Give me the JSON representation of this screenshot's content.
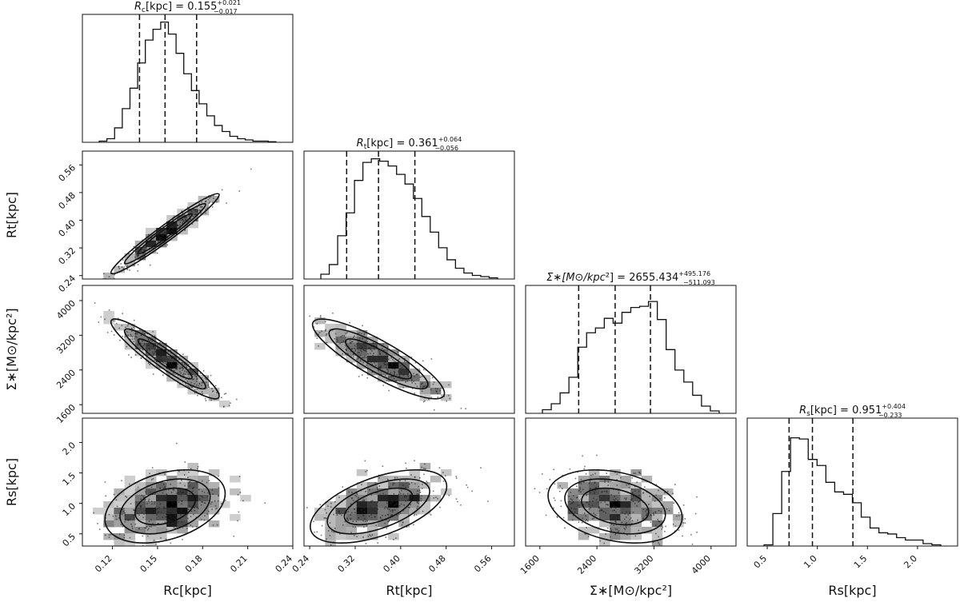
{
  "chart_data": {
    "type": "corner",
    "parameters": [
      {
        "key": "Rc",
        "symbol": "R",
        "sub": "c",
        "unit": "[kpc]",
        "range": [
          0.1,
          0.24
        ],
        "ticks": [
          "0.12",
          "0.15",
          "0.18",
          "0.21",
          "0.24"
        ],
        "tick_values": [
          0.12,
          0.15,
          0.18,
          0.21,
          0.24
        ],
        "median": 0.155,
        "q16": 0.138,
        "q84": 0.176,
        "title_value": "0.155",
        "title_plus": "+0.021",
        "title_minus": "−0.017",
        "hist": [
          0.01,
          0.03,
          0.12,
          0.28,
          0.45,
          0.66,
          0.85,
          0.94,
          1.0,
          0.9,
          0.74,
          0.57,
          0.43,
          0.32,
          0.22,
          0.14,
          0.09,
          0.05,
          0.03,
          0.02,
          0.01,
          0.01,
          0.005
        ]
      },
      {
        "key": "Rt",
        "symbol": "R",
        "sub": "t",
        "unit": "[kpc]",
        "range": [
          0.23,
          0.6
        ],
        "ticks": [
          "0.24",
          "0.32",
          "0.40",
          "0.48",
          "0.56"
        ],
        "tick_values": [
          0.24,
          0.32,
          0.4,
          0.48,
          0.56
        ],
        "median": 0.361,
        "q16": 0.305,
        "q84": 0.425,
        "title_value": "0.361",
        "title_plus": "+0.064",
        "title_minus": "−0.056",
        "hist": [
          0.04,
          0.12,
          0.36,
          0.55,
          0.82,
          0.97,
          1.0,
          0.98,
          0.94,
          0.87,
          0.79,
          0.67,
          0.52,
          0.39,
          0.26,
          0.16,
          0.09,
          0.05,
          0.03,
          0.02,
          0.01
        ]
      },
      {
        "key": "Sigma",
        "symbol": "Σ∗",
        "sub": "",
        "unit": "[M⊙/kpc²]",
        "range": [
          1400,
          4350
        ],
        "ticks": [
          "1600",
          "2400",
          "3200",
          "4000"
        ],
        "tick_values": [
          1600,
          2400,
          3200,
          4000
        ],
        "median": 2655.434,
        "q16": 2144.341,
        "q84": 3150.61,
        "title_value": "2655.434",
        "title_plus": "+495.176",
        "title_minus": "−511.093",
        "hist": [
          0.03,
          0.08,
          0.17,
          0.3,
          0.55,
          0.67,
          0.71,
          0.79,
          0.75,
          0.84,
          0.88,
          0.89,
          0.93,
          0.78,
          0.53,
          0.36,
          0.26,
          0.15,
          0.06,
          0.02
        ]
      },
      {
        "key": "Rs",
        "symbol": "R",
        "sub": "s",
        "unit": "[kpc]",
        "range": [
          0.3,
          2.4
        ],
        "ticks": [
          "0.5",
          "1.0",
          "1.5",
          "2.0"
        ],
        "tick_values": [
          0.5,
          1.0,
          1.5,
          2.0
        ],
        "median": 0.951,
        "q16": 0.718,
        "q84": 1.355,
        "title_value": "0.951",
        "title_plus": "+0.404",
        "title_minus": "−0.233",
        "hist": [
          0.01,
          0.27,
          0.62,
          0.9,
          0.89,
          0.72,
          0.67,
          0.53,
          0.45,
          0.43,
          0.36,
          0.24,
          0.15,
          0.11,
          0.1,
          0.07,
          0.05,
          0.05,
          0.02,
          0.01
        ]
      }
    ],
    "pairs": [
      {
        "row": 1,
        "col": 0,
        "mean": [
          0.155,
          0.361
        ],
        "sd": [
          0.018,
          0.058
        ],
        "rho": 0.97
      },
      {
        "row": 2,
        "col": 0,
        "mean": [
          0.155,
          2655
        ],
        "sd": [
          0.018,
          460
        ],
        "rho": -0.93
      },
      {
        "row": 2,
        "col": 1,
        "mean": [
          0.361,
          2655
        ],
        "sd": [
          0.058,
          460
        ],
        "rho": -0.86
      },
      {
        "row": 3,
        "col": 0,
        "mean": [
          0.155,
          0.95
        ],
        "sd": [
          0.02,
          0.3
        ],
        "rho": 0.35
      },
      {
        "row": 3,
        "col": 1,
        "mean": [
          0.361,
          0.95
        ],
        "sd": [
          0.06,
          0.3
        ],
        "rho": 0.55
      },
      {
        "row": 3,
        "col": 2,
        "mean": [
          2655,
          0.95
        ],
        "sd": [
          470,
          0.3
        ],
        "rho": -0.3
      }
    ],
    "titles": [
      {
        "pre": "R",
        "sub": "c",
        "mid": "[kpc] = 0.155",
        "plus": "+0.021",
        "minus": "−0.017"
      },
      {
        "pre": "R",
        "sub": "t",
        "mid": "[kpc] = 0.361",
        "plus": "+0.064",
        "minus": "−0.056"
      },
      {
        "pre": "Σ∗[M⊙/kpc",
        "sub": "",
        "mid": "²]  = 2655.434",
        "plus": "+495.176",
        "minus": "−511.093"
      },
      {
        "pre": "R",
        "sub": "s",
        "mid": "[kpc] = 0.951",
        "plus": "+0.404",
        "minus": "−0.233"
      }
    ],
    "axis_labels": {
      "x": [
        "Rc[kpc]",
        "Rt[kpc]",
        "Σ∗[M⊙/kpc²]",
        "Rs[kpc]"
      ],
      "y": [
        "Rt[kpc]",
        "Σ∗[M⊙/kpc²]",
        "Rs[kpc]"
      ]
    },
    "quantiles": [
      0.16,
      0.5,
      0.84
    ],
    "style": {
      "line": "#111111",
      "bg": "#ffffff"
    }
  }
}
